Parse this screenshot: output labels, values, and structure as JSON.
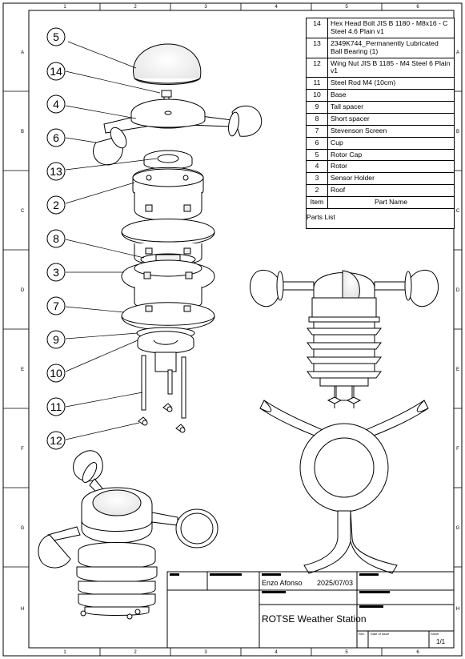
{
  "zones": {
    "columns": [
      "1",
      "2",
      "3",
      "4",
      "5",
      "6"
    ],
    "rows": [
      "A",
      "B",
      "C",
      "D",
      "E",
      "F",
      "G",
      "H"
    ]
  },
  "balloons": [
    "5",
    "14",
    "4",
    "6",
    "13",
    "2",
    "8",
    "3",
    "7",
    "9",
    "10",
    "11",
    "12"
  ],
  "parts_list": {
    "title": "Parts List",
    "header": {
      "item": "Item",
      "name": "Part Name"
    },
    "rows": [
      {
        "item": "14",
        "name": "Hex Head Bolt JIS B 1180 - M8x16 - C Steel 4.6 Plain v1"
      },
      {
        "item": "13",
        "name": "2349K744_Permanently Lubricated Ball Bearing (1)"
      },
      {
        "item": "12",
        "name": "Wing Nut JIS B 1185 - M4 Steel 6 Plain v1"
      },
      {
        "item": "11",
        "name": "Steel Rod M4 (10cm)"
      },
      {
        "item": "10",
        "name": "Base"
      },
      {
        "item": "9",
        "name": "Tall spacer"
      },
      {
        "item": "8",
        "name": "Short spacer"
      },
      {
        "item": "7",
        "name": "Stevenson Screen"
      },
      {
        "item": "6",
        "name": "Cup"
      },
      {
        "item": "5",
        "name": "Rotor Cap"
      },
      {
        "item": "4",
        "name": "Rotor"
      },
      {
        "item": "3",
        "name": "Sensor Holder"
      },
      {
        "item": "2",
        "name": "Roof"
      }
    ]
  },
  "title_block": {
    "author": "Enzo Afonso",
    "date": "2025/07/03",
    "title": "ROTSE Weather Station",
    "rev_label": "Rev.",
    "date_of_issue_label": "Date of issue",
    "sheet_label": "Sheet",
    "sheet_value": "1/1"
  }
}
